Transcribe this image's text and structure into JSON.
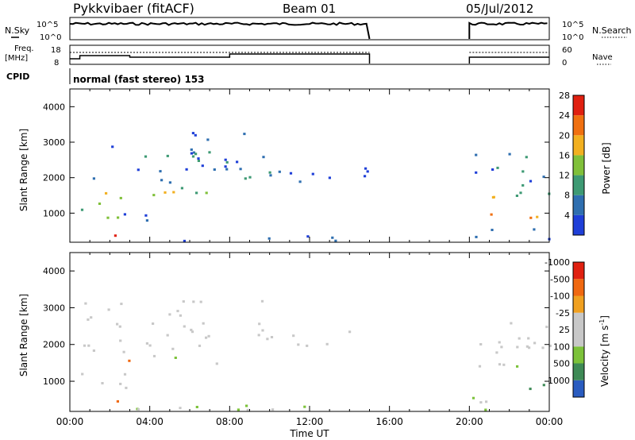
{
  "header": {
    "station": "Pykkvibaer (fitACF)",
    "beam": "Beam 01",
    "date": "05/Jul/2012"
  },
  "ops_panel": {
    "nsky_label": "N.Sky",
    "nsky_ticks": [
      "10^5",
      "10^0"
    ],
    "nsearch_label": "N.Search",
    "nsearch_ticks": [
      "10^5",
      "10^0"
    ],
    "freq_label": "Freq.",
    "freq_unit": "[MHz]",
    "freq_ticks": [
      "18",
      "8"
    ],
    "nave_label": "Nave",
    "nave_ticks": [
      "60",
      "0"
    ],
    "cpid_label": "CPID",
    "cpid_text": "normal (fast stereo) 153"
  },
  "chart_data": [
    {
      "type": "heatmap",
      "name_hint": "power",
      "ylabel": "Slant Range [km]",
      "colorbar_label": "Power [dB]",
      "ylim": [
        180,
        4500
      ],
      "y_ticks": [
        1000,
        2000,
        3000,
        4000
      ],
      "x_ticks": [
        "00:00",
        "04:00",
        "08:00",
        "12:00",
        "16:00",
        "20:00",
        "00:00"
      ],
      "xlim_hours": [
        0,
        24
      ],
      "data_gap_hours": [
        15,
        20
      ],
      "color_levels": [
        {
          "label": "4",
          "color": "#1f3fd8"
        },
        {
          "label": "8",
          "color": "#2f6fb0"
        },
        {
          "label": "12",
          "color": "#3e9a74"
        },
        {
          "label": "16",
          "color": "#80c03a"
        },
        {
          "label": "20",
          "color": "#f2b020"
        },
        {
          "label": "24",
          "color": "#f07010"
        },
        {
          "label": "28",
          "color": "#e02010"
        }
      ]
    },
    {
      "type": "heatmap",
      "name_hint": "velocity",
      "ylabel": "Slant Range [km]",
      "xlabel": "Time UT",
      "colorbar_label": "Velocity [m s",
      "colorbar_label_sup": "-1",
      "colorbar_label_end": "]",
      "ylim": [
        180,
        4500
      ],
      "y_ticks": [
        1000,
        2000,
        3000,
        4000
      ],
      "x_ticks": [
        "00:00",
        "04:00",
        "08:00",
        "12:00",
        "16:00",
        "20:00",
        "00:00"
      ],
      "xlim_hours": [
        0,
        24
      ],
      "data_gap_hours": [
        15,
        20
      ],
      "color_levels": [
        {
          "label": "1000",
          "color": "#2a5cc0"
        },
        {
          "label": "500",
          "color": "#3e8a56"
        },
        {
          "label": "100",
          "color": "#7cc23a"
        },
        {
          "label": "25",
          "color": "#c8c8c8"
        },
        {
          "label": "-25",
          "color": "#c8c8c8"
        },
        {
          "label": "-100",
          "color": "#f0a020"
        },
        {
          "label": "-500",
          "color": "#f06810"
        },
        {
          "label": "-1000",
          "color": "#e02010"
        }
      ]
    }
  ]
}
